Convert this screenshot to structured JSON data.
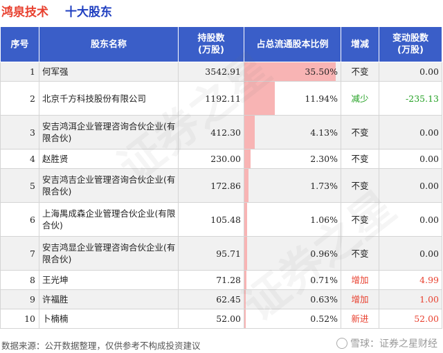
{
  "header": {
    "company": "鸿泉技术",
    "subtitle": "十大股东"
  },
  "columns": [
    "序号",
    "股东名称",
    "持股数\n(万股)",
    "占总流通股本比例",
    "增减",
    "变动股数\n(万股)"
  ],
  "colors": {
    "increase": "#e8402f",
    "decrease": "#22a022",
    "unchanged": "#222222",
    "bar": "#f8b4b4",
    "header_bg": "#3a5ec8"
  },
  "rows": [
    {
      "idx": "1",
      "name": "何军强",
      "shares": "3542.91",
      "ratio_text": "35.50%",
      "ratio": 35.5,
      "change": "不变",
      "type": "unchanged",
      "delta": "0.00"
    },
    {
      "idx": "2",
      "name": "北京千方科技股份有限公司",
      "shares": "1192.11",
      "ratio_text": "11.94%",
      "ratio": 11.94,
      "change": "减少",
      "type": "decrease",
      "delta": "-235.13"
    },
    {
      "idx": "3",
      "name": "安吉鸿洱企业管理咨询合伙企业(有限合伙)",
      "shares": "412.30",
      "ratio_text": "4.13%",
      "ratio": 4.13,
      "change": "不变",
      "type": "unchanged",
      "delta": "0.00"
    },
    {
      "idx": "4",
      "name": "赵胜贤",
      "shares": "230.00",
      "ratio_text": "2.30%",
      "ratio": 2.3,
      "change": "不变",
      "type": "unchanged",
      "delta": "0.00"
    },
    {
      "idx": "5",
      "name": "安吉鸿吉企业管理咨询合伙企业(有限合伙)",
      "shares": "172.86",
      "ratio_text": "1.73%",
      "ratio": 1.73,
      "change": "不变",
      "type": "unchanged",
      "delta": "0.00"
    },
    {
      "idx": "6",
      "name": "上海禺成森企业管理合伙企业(有限合伙)",
      "shares": "105.48",
      "ratio_text": "1.06%",
      "ratio": 1.06,
      "change": "不变",
      "type": "unchanged",
      "delta": "0.00"
    },
    {
      "idx": "7",
      "name": "安吉鸿显企业管理咨询合伙企业(有限合伙)",
      "shares": "95.71",
      "ratio_text": "0.96%",
      "ratio": 0.96,
      "change": "不变",
      "type": "unchanged",
      "delta": "0.00"
    },
    {
      "idx": "8",
      "name": "王光坤",
      "shares": "71.28",
      "ratio_text": "0.71%",
      "ratio": 0.71,
      "change": "增加",
      "type": "increase",
      "delta": "4.99"
    },
    {
      "idx": "9",
      "name": "许福胜",
      "shares": "62.45",
      "ratio_text": "0.63%",
      "ratio": 0.63,
      "change": "增加",
      "type": "increase",
      "delta": "1.00"
    },
    {
      "idx": "10",
      "name": "卜楠楠",
      "shares": "52.00",
      "ratio_text": "0.52%",
      "ratio": 0.52,
      "change": "新进",
      "type": "increase",
      "delta": "52.00"
    }
  ],
  "footer": {
    "source": "数据来源：公开数据整理，仅供参考不构成投资建议",
    "brand": "雪球：证券之星财经"
  }
}
